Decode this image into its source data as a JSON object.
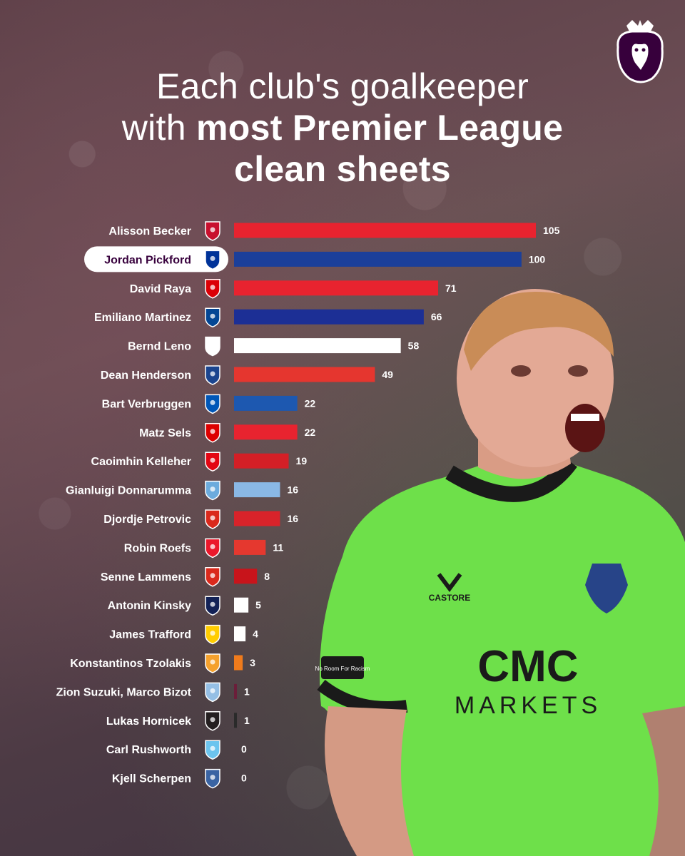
{
  "title": {
    "line1": "Each club's goalkeeper",
    "line2_regular": "with ",
    "line2_bold": "most Premier League",
    "line3": "clean sheets"
  },
  "logo_icon": "premier-league-lion-icon",
  "sponsor": {
    "kit_brand": "CASTORE",
    "shirt_sponsor_line1": "CMC",
    "shirt_sponsor_line2": "MARKETS",
    "sleeve_text": "No Room For Racism",
    "badge_text": "Everton"
  },
  "chart_data": {
    "type": "bar",
    "orientation": "horizontal",
    "highlighted": "Jordan Pickford",
    "categories": [
      "Alisson Becker",
      "Jordan Pickford",
      "David Raya",
      "Emiliano Martinez",
      "Bernd Leno",
      "Dean Henderson",
      "Bart Verbruggen",
      "Matz Sels",
      "Caoimhin Kelleher",
      "Gianluigi Donnarumma",
      "Djordje Petrovic",
      "Robin Roefs",
      "Senne Lammens",
      "Antonin Kinsky",
      "James Trafford",
      "Konstantinos Tzolakis",
      "Zion Suzuki, Marco Bizot",
      "Lukas Hornicek",
      "Carl Rushworth",
      "Kjell Scherpen"
    ],
    "values": [
      105,
      100,
      71,
      66,
      58,
      49,
      22,
      22,
      19,
      16,
      16,
      11,
      8,
      5,
      4,
      3,
      1,
      1,
      0,
      0
    ],
    "bar_colors": [
      "#e8232f",
      "#1b3f9a",
      "#e8232f",
      "#1c2f95",
      "#ffffff",
      "#e5362f",
      "#1d58b0",
      "#e8232f",
      "#d41f26",
      "#8ab8e5",
      "#d8232a",
      "#e5382f",
      "#c8141b",
      "#ffffff",
      "#ffffff",
      "#f07b1c",
      "#6b1e3a",
      "#2a2a2a",
      "#5ab3e6",
      "#2c5ab0"
    ],
    "club_icons": [
      "liverpool-crest-icon",
      "everton-crest-icon",
      "arsenal-crest-icon",
      "chelsea-crest-icon",
      "fulham-crest-icon",
      "crystal-palace-crest-icon",
      "brighton-crest-icon",
      "nottingham-forest-crest-icon",
      "brentford-crest-icon",
      "manchester-city-crest-icon",
      "bournemouth-crest-icon",
      "sunderland-crest-icon",
      "manchester-united-crest-icon",
      "tottenham-crest-icon",
      "leeds-crest-icon",
      "hull-city-crest-icon",
      "aston-villa-crest-icon",
      "newcastle-crest-icon",
      "coventry-crest-icon",
      "ipswich-crest-icon"
    ],
    "crest_colors": [
      "#c8102e",
      "#003399",
      "#db0007",
      "#034694",
      "#ffffff",
      "#1b458f",
      "#0057b8",
      "#dd0000",
      "#e30613",
      "#6cabdd",
      "#da291c",
      "#eb172b",
      "#da291c",
      "#132257",
      "#ffcd00",
      "#f5a12d",
      "#95bfe5",
      "#241f20",
      "#6cc4ee",
      "#3a64a3"
    ],
    "xlim": [
      0,
      105
    ],
    "title": "Each club's goalkeeper with most Premier League clean sheets",
    "xlabel": "",
    "ylabel": "",
    "grid": false,
    "legend": "none"
  }
}
